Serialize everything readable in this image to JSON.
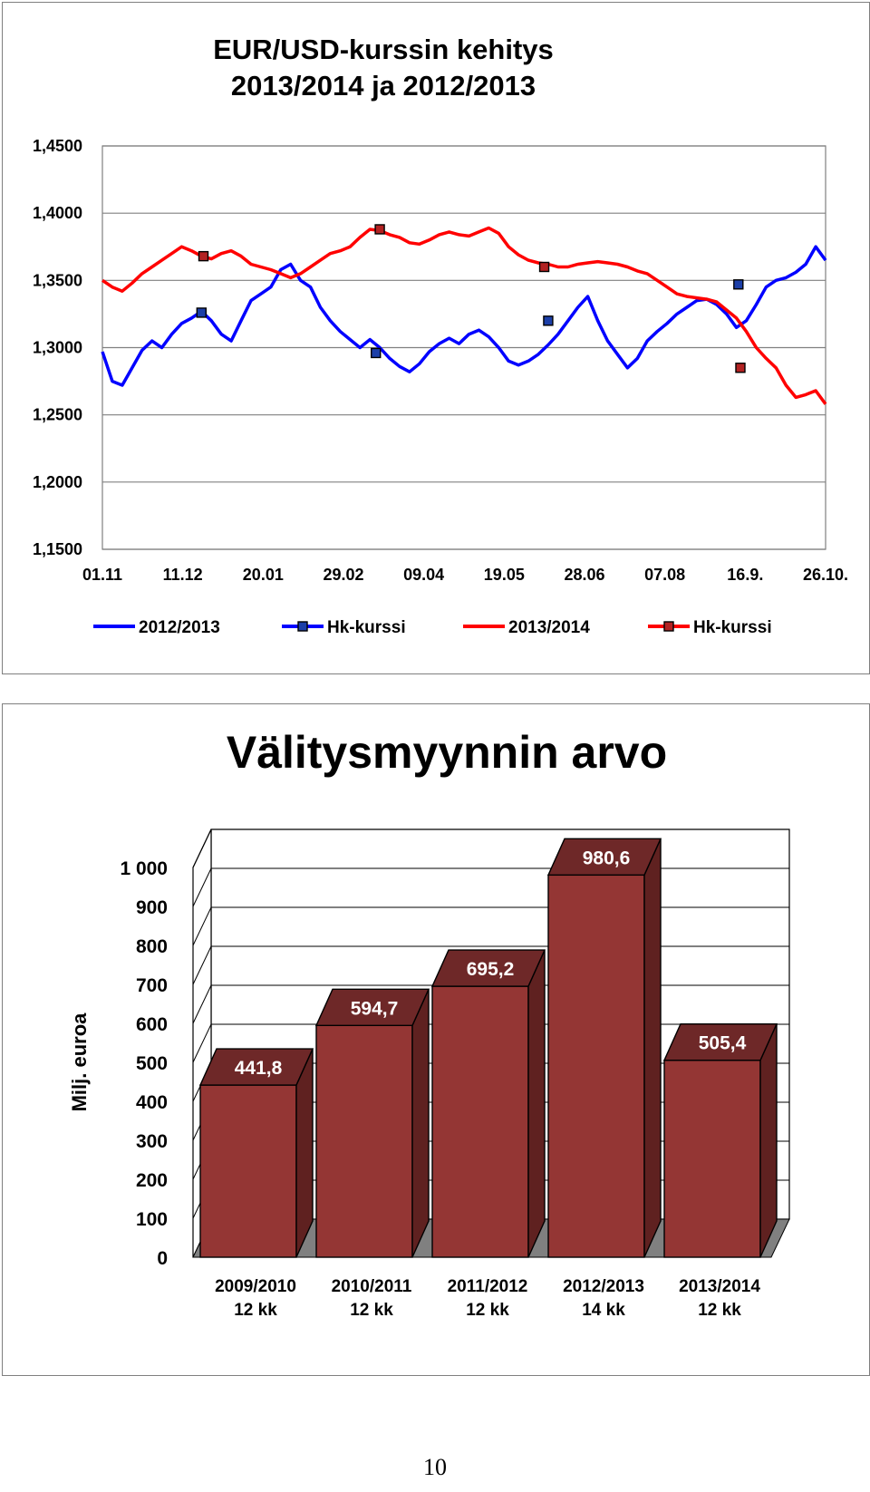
{
  "page_number": "10",
  "chart_data": [
    {
      "type": "line",
      "title": "EUR/USD-kurssin kehitys",
      "subtitle": "2013/2014 ja 2012/2013",
      "xlabel": "",
      "ylabel": "",
      "ylim": [
        1.15,
        1.45
      ],
      "grid": true,
      "legend_position": "bottom",
      "x_ticks": [
        "01.11",
        "11.12",
        "20.01",
        "29.02",
        "09.04",
        "19.05",
        "28.06",
        "07.08",
        "16.9.",
        "26.10."
      ],
      "y_ticks": [
        {
          "value": 1.45,
          "label": "1,4500"
        },
        {
          "value": 1.4,
          "label": "1,4000"
        },
        {
          "value": 1.35,
          "label": "1,3500"
        },
        {
          "value": 1.3,
          "label": "1,3000"
        },
        {
          "value": 1.25,
          "label": "1,2500"
        },
        {
          "value": 1.2,
          "label": "1,2000"
        },
        {
          "value": 1.15,
          "label": "1,1500"
        }
      ],
      "series": [
        {
          "name": "2012/2013",
          "color": "#0000ff",
          "x_days": [
            0,
            5,
            10,
            15,
            20,
            25,
            30,
            35,
            40,
            45,
            50,
            55,
            60,
            65,
            70,
            75,
            80,
            85,
            90,
            95,
            100,
            105,
            110,
            115,
            120,
            125,
            130,
            135,
            140,
            145,
            150,
            155,
            160,
            165,
            170,
            175,
            180,
            185,
            190,
            195,
            200,
            205,
            210,
            215,
            220,
            225,
            230,
            235,
            240,
            245,
            250,
            255,
            260,
            265,
            270,
            275,
            280,
            285,
            290,
            295,
            300,
            305,
            310,
            315,
            320,
            325,
            330,
            335,
            340,
            345,
            350,
            355,
            360,
            365
          ],
          "values": [
            1.297,
            1.275,
            1.272,
            1.285,
            1.298,
            1.305,
            1.3,
            1.31,
            1.318,
            1.322,
            1.327,
            1.32,
            1.31,
            1.305,
            1.32,
            1.335,
            1.34,
            1.345,
            1.358,
            1.362,
            1.35,
            1.345,
            1.33,
            1.32,
            1.312,
            1.306,
            1.3,
            1.306,
            1.3,
            1.292,
            1.286,
            1.282,
            1.288,
            1.297,
            1.303,
            1.307,
            1.303,
            1.31,
            1.313,
            1.308,
            1.3,
            1.29,
            1.287,
            1.29,
            1.295,
            1.302,
            1.31,
            1.32,
            1.33,
            1.338,
            1.32,
            1.305,
            1.295,
            1.285,
            1.292,
            1.305,
            1.312,
            1.318,
            1.325,
            1.33,
            1.335,
            1.336,
            1.332,
            1.325,
            1.315,
            1.32,
            1.332,
            1.345,
            1.35,
            1.352,
            1.356,
            1.362,
            1.375,
            1.365
          ]
        },
        {
          "name": "Hk-kurssi",
          "color": "#0000ff",
          "marker": "square",
          "x_days": [
            50,
            138,
            225,
            321
          ],
          "values": [
            1.326,
            1.296,
            1.32,
            1.347
          ]
        },
        {
          "name": "2013/2014",
          "color": "#ff0000",
          "x_days": [
            0,
            5,
            10,
            15,
            20,
            25,
            30,
            35,
            40,
            45,
            50,
            55,
            60,
            65,
            70,
            75,
            80,
            85,
            90,
            95,
            100,
            105,
            110,
            115,
            120,
            125,
            130,
            135,
            140,
            145,
            150,
            155,
            160,
            165,
            170,
            175,
            180,
            185,
            190,
            195,
            200,
            205,
            210,
            215,
            220,
            225,
            230,
            235,
            240,
            245,
            250,
            255,
            260,
            265,
            270,
            275,
            280,
            285,
            290,
            295,
            300,
            305,
            310,
            315,
            320,
            325,
            330,
            335,
            340,
            345,
            350,
            355,
            360,
            365
          ],
          "values": [
            1.35,
            1.345,
            1.342,
            1.348,
            1.355,
            1.36,
            1.365,
            1.37,
            1.375,
            1.372,
            1.368,
            1.366,
            1.37,
            1.372,
            1.368,
            1.362,
            1.36,
            1.358,
            1.355,
            1.352,
            1.355,
            1.36,
            1.365,
            1.37,
            1.372,
            1.375,
            1.382,
            1.388,
            1.387,
            1.384,
            1.382,
            1.378,
            1.377,
            1.38,
            1.384,
            1.386,
            1.384,
            1.383,
            1.386,
            1.389,
            1.385,
            1.375,
            1.369,
            1.365,
            1.363,
            1.362,
            1.36,
            1.36,
            1.362,
            1.363,
            1.364,
            1.363,
            1.362,
            1.36,
            1.357,
            1.355,
            1.35,
            1.345,
            1.34,
            1.338,
            1.337,
            1.336,
            1.334,
            1.328,
            1.322,
            1.312,
            1.3,
            1.292,
            1.285,
            1.272,
            1.263,
            1.265,
            1.268,
            1.258
          ]
        },
        {
          "name": "Hk-kurssi",
          "color": "#ff0000",
          "marker": "square",
          "x_days": [
            51,
            140,
            223,
            322
          ],
          "values": [
            1.368,
            1.388,
            1.36,
            1.285
          ]
        }
      ]
    },
    {
      "type": "bar",
      "title": "Välitysmyynnin arvo",
      "ylabel": "Milj. euroa",
      "xlabel": "",
      "ylim": [
        0,
        1000
      ],
      "grid": true,
      "style": "3d",
      "bar_color": "#943634",
      "y_ticks": [
        {
          "value": 1000,
          "label": "1 000"
        },
        {
          "value": 900,
          "label": "900"
        },
        {
          "value": 800,
          "label": "800"
        },
        {
          "value": 700,
          "label": "700"
        },
        {
          "value": 600,
          "label": "600"
        },
        {
          "value": 500,
          "label": "500"
        },
        {
          "value": 400,
          "label": "400"
        },
        {
          "value": 300,
          "label": "300"
        },
        {
          "value": 200,
          "label": "200"
        },
        {
          "value": 100,
          "label": "100"
        },
        {
          "value": 0,
          "label": "0"
        }
      ],
      "categories": [
        [
          "2009/2010",
          "12 kk"
        ],
        [
          "2010/2011",
          "12 kk"
        ],
        [
          "2011/2012",
          "12 kk"
        ],
        [
          "2012/2013",
          "14 kk"
        ],
        [
          "2013/2014",
          "12 kk"
        ]
      ],
      "values": [
        441.8,
        594.7,
        695.2,
        980.6,
        505.4
      ],
      "value_labels": [
        "441,8",
        "594,7",
        "695,2",
        "980,6",
        "505,4"
      ]
    }
  ]
}
